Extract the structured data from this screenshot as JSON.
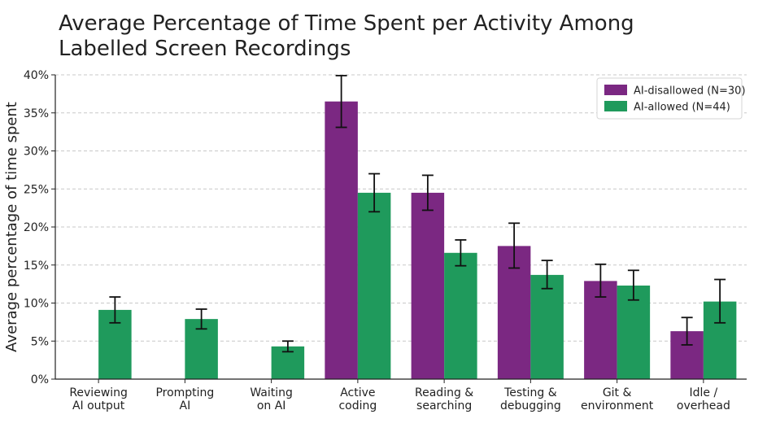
{
  "chart_data": {
    "type": "bar",
    "title": [
      "Average Percentage of Time Spent per Activity Among",
      "Labelled Screen Recordings"
    ],
    "ylabel": "Average percentage of time spent",
    "xlabel": "",
    "ylim": [
      0,
      40
    ],
    "yticks": [
      0,
      5,
      10,
      15,
      20,
      25,
      30,
      35,
      40
    ],
    "ytick_labels": [
      "0%",
      "5%",
      "10%",
      "15%",
      "20%",
      "25%",
      "30%",
      "35%",
      "40%"
    ],
    "grid": "horizontal dashed",
    "legend_position": "top-right",
    "categories": [
      [
        "Reviewing",
        "AI output"
      ],
      [
        "Prompting",
        "AI"
      ],
      [
        "Waiting",
        "on AI"
      ],
      [
        "Active",
        "coding"
      ],
      [
        "Reading &",
        "searching"
      ],
      [
        "Testing &",
        "debugging"
      ],
      [
        "Git &",
        "environment"
      ],
      [
        "Idle /",
        "overhead"
      ]
    ],
    "series": [
      {
        "name": "AI-disallowed (N=30)",
        "color": "#7b2882",
        "values": [
          0,
          0,
          0,
          36.5,
          24.5,
          17.5,
          12.9,
          6.3
        ],
        "error_low": [
          0,
          0,
          0,
          33.1,
          22.2,
          14.6,
          10.8,
          4.5
        ],
        "error_high": [
          0,
          0,
          0,
          39.9,
          26.8,
          20.5,
          15.1,
          8.1
        ]
      },
      {
        "name": "AI-allowed (N=44)",
        "color": "#1f9a5c",
        "values": [
          9.1,
          7.9,
          4.3,
          24.5,
          16.6,
          13.7,
          12.3,
          10.2
        ],
        "error_low": [
          7.4,
          6.6,
          3.6,
          22.0,
          14.9,
          11.9,
          10.4,
          7.4
        ],
        "error_high": [
          10.8,
          9.2,
          5.0,
          27.0,
          18.3,
          15.6,
          14.3,
          13.1
        ]
      }
    ]
  }
}
